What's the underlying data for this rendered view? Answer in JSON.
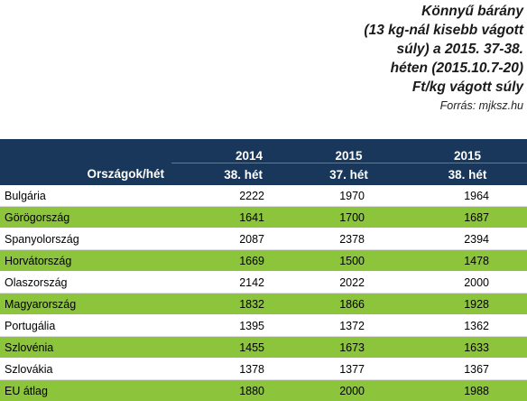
{
  "title": {
    "lines": [
      "Könnyű bárány",
      "(13 kg-nál kisebb vágott",
      "súly) a 2015. 37-38.",
      "héten (2015.10.7-20)",
      "Ft/kg vágott súly"
    ],
    "source": "Forrás: mjksz.hu"
  },
  "table": {
    "header": {
      "row_label": "Országok/hét",
      "columns": [
        {
          "year": "2014",
          "week": "38. hét"
        },
        {
          "year": "2015",
          "week": "37. hét"
        },
        {
          "year": "2015",
          "week": "38. hét"
        }
      ]
    },
    "rows": [
      {
        "country": "Bulgária",
        "values": [
          "2222",
          "1970",
          "1964"
        ]
      },
      {
        "country": "Görögország",
        "values": [
          "1641",
          "1700",
          "1687"
        ]
      },
      {
        "country": "Spanyolország",
        "values": [
          "2087",
          "2378",
          "2394"
        ]
      },
      {
        "country": "Horvátország",
        "values": [
          "1669",
          "1500",
          "1478"
        ]
      },
      {
        "country": "Olaszország",
        "values": [
          "2142",
          "2022",
          "2000"
        ]
      },
      {
        "country": "Magyarország",
        "values": [
          "1832",
          "1866",
          "1928"
        ]
      },
      {
        "country": "Portugália",
        "values": [
          "1395",
          "1372",
          "1362"
        ]
      },
      {
        "country": "Szlovénia",
        "values": [
          "1455",
          "1673",
          "1633"
        ]
      },
      {
        "country": "Szlovákia",
        "values": [
          "1378",
          "1377",
          "1367"
        ]
      },
      {
        "country": "EU átlag",
        "values": [
          "1880",
          "2000",
          "1988"
        ]
      }
    ]
  },
  "colors": {
    "header_bg": "#18375a",
    "stripe_green": "#8cc43c",
    "white": "#ffffff"
  }
}
